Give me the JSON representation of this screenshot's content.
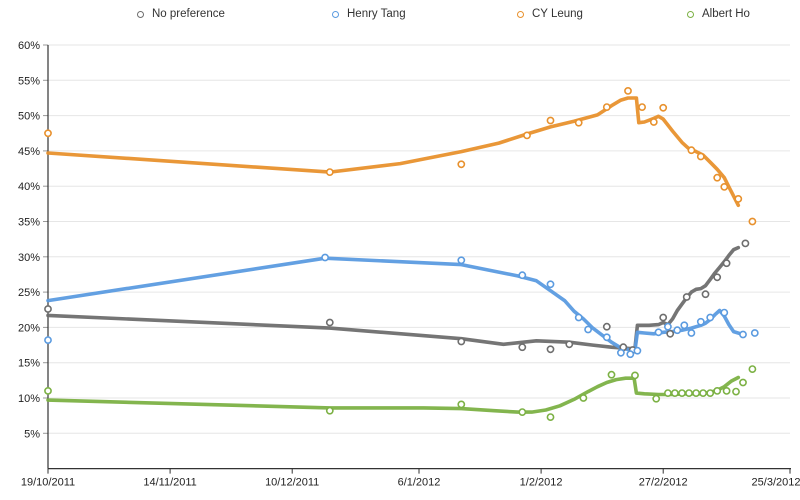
{
  "chart_data": {
    "type": "line",
    "title": "",
    "subtitle": "",
    "legend_position": "top",
    "grid": "horizontal",
    "background_color": "#ffffff",
    "axis_color": "#333333",
    "gridline_color": "#e6e6e6",
    "tick_color": "#999999",
    "label_color": "#222222",
    "x_axis": {
      "start_label": "19/10/2011",
      "end_label": "25/3/2012",
      "total_days": 158,
      "tick_days": [
        0,
        26,
        52,
        79,
        105,
        131,
        158
      ],
      "tick_labels": [
        "19/10/2011",
        "14/11/2011",
        "10/12/2011",
        "6/1/2012",
        "1/2/2012",
        "27/2/2012",
        "25/3/2012"
      ]
    },
    "y_axis": {
      "unit": "%",
      "min": 0,
      "max": 60,
      "step": 5,
      "tick_values": [
        5,
        10,
        15,
        20,
        25,
        30,
        35,
        40,
        45,
        50,
        55,
        60
      ],
      "tick_labels": [
        "5%",
        "10%",
        "15%",
        "20%",
        "25%",
        "30%",
        "35%",
        "40%",
        "45%",
        "50%",
        "55%",
        "60%"
      ]
    },
    "series": [
      {
        "name": "No preference",
        "color": "#6e6e6e",
        "trend": [
          [
            0,
            21.7
          ],
          [
            60,
            19.9
          ],
          [
            88,
            18.4
          ],
          [
            97,
            17.6
          ],
          [
            104,
            18.1
          ],
          [
            111,
            17.9
          ],
          [
            116,
            17.5
          ],
          [
            120,
            17.2
          ],
          [
            124,
            17.0
          ],
          [
            125,
            17.1
          ],
          [
            125.5,
            20.3
          ],
          [
            128,
            20.3
          ],
          [
            130,
            20.4
          ],
          [
            131,
            20.7
          ],
          [
            132,
            20.4
          ],
          [
            133,
            21.2
          ],
          [
            134,
            22.4
          ],
          [
            135,
            23.3
          ],
          [
            136,
            24.2
          ],
          [
            137,
            25.0
          ],
          [
            138,
            25.4
          ],
          [
            139,
            25.5
          ],
          [
            140,
            25.9
          ],
          [
            141,
            26.8
          ],
          [
            142,
            27.7
          ],
          [
            143,
            28.5
          ],
          [
            144,
            29.3
          ],
          [
            145,
            30.2
          ],
          [
            146,
            31.0
          ],
          [
            147,
            31.3
          ]
        ],
        "points": [
          [
            0,
            22.6
          ],
          [
            60,
            20.7
          ],
          [
            88,
            18.0
          ],
          [
            101,
            17.2
          ],
          [
            107,
            16.9
          ],
          [
            111,
            17.6
          ],
          [
            119,
            20.1
          ],
          [
            122.5,
            17.2
          ],
          [
            124.5,
            16.8
          ],
          [
            131,
            21.4
          ],
          [
            132.5,
            19.1
          ],
          [
            136,
            24.3
          ],
          [
            140,
            24.7
          ],
          [
            142.5,
            27.1
          ],
          [
            144.5,
            29.1
          ],
          [
            148.5,
            31.9
          ]
        ]
      },
      {
        "name": "Henry Tang",
        "color": "#5b9be0",
        "trend": [
          [
            0,
            23.8
          ],
          [
            59,
            29.8
          ],
          [
            88,
            28.9
          ],
          [
            100,
            27.3
          ],
          [
            104,
            26.6
          ],
          [
            107,
            25.2
          ],
          [
            110,
            23.8
          ],
          [
            112,
            22.3
          ],
          [
            114,
            21.2
          ],
          [
            116,
            19.9
          ],
          [
            118,
            18.9
          ],
          [
            120,
            17.9
          ],
          [
            122,
            17.1
          ],
          [
            124,
            16.8
          ],
          [
            125,
            16.8
          ],
          [
            125.5,
            19.3
          ],
          [
            127,
            19.2
          ],
          [
            129,
            19.1
          ],
          [
            131,
            19.3
          ],
          [
            133,
            19.4
          ],
          [
            135,
            19.6
          ],
          [
            137,
            19.9
          ],
          [
            139,
            20.3
          ],
          [
            140,
            20.6
          ],
          [
            141,
            21.1
          ],
          [
            142,
            21.8
          ],
          [
            143,
            22.4
          ],
          [
            144,
            21.6
          ],
          [
            145,
            20.4
          ],
          [
            146,
            19.4
          ],
          [
            147.5,
            19.1
          ]
        ],
        "points": [
          [
            0,
            18.2
          ],
          [
            59,
            29.9
          ],
          [
            88,
            29.5
          ],
          [
            101,
            27.4
          ],
          [
            107,
            26.1
          ],
          [
            113,
            21.4
          ],
          [
            115,
            19.7
          ],
          [
            119,
            18.6
          ],
          [
            122,
            16.4
          ],
          [
            124,
            16.2
          ],
          [
            125.5,
            16.7
          ],
          [
            130,
            19.3
          ],
          [
            132,
            20.1
          ],
          [
            134,
            19.6
          ],
          [
            135.5,
            20.3
          ],
          [
            137,
            19.2
          ],
          [
            139,
            20.8
          ],
          [
            141,
            21.4
          ],
          [
            144,
            22.1
          ],
          [
            148,
            19.0
          ],
          [
            150.5,
            19.2
          ]
        ]
      },
      {
        "name": "CY Leung",
        "color": "#e8912d",
        "trend": [
          [
            0,
            44.7
          ],
          [
            60,
            42.0
          ],
          [
            75,
            43.2
          ],
          [
            88,
            44.9
          ],
          [
            96,
            46.1
          ],
          [
            102,
            47.4
          ],
          [
            107,
            48.4
          ],
          [
            112,
            49.2
          ],
          [
            117,
            50.1
          ],
          [
            120,
            51.4
          ],
          [
            122,
            52.2
          ],
          [
            123.5,
            52.5
          ],
          [
            125.3,
            52.5
          ],
          [
            125.8,
            49.0
          ],
          [
            127,
            49.1
          ],
          [
            129,
            49.6
          ],
          [
            130,
            49.9
          ],
          [
            131,
            49.5
          ],
          [
            133,
            47.8
          ],
          [
            135,
            46.2
          ],
          [
            136.5,
            45.3
          ],
          [
            138,
            44.9
          ],
          [
            139.5,
            44.4
          ],
          [
            141,
            43.4
          ],
          [
            142.5,
            42.4
          ],
          [
            144,
            41.2
          ],
          [
            145,
            39.9
          ],
          [
            146,
            38.6
          ],
          [
            147,
            37.3
          ]
        ],
        "points": [
          [
            0,
            47.5
          ],
          [
            60,
            42.0
          ],
          [
            88,
            43.1
          ],
          [
            102,
            47.2
          ],
          [
            107,
            49.3
          ],
          [
            113,
            49.0
          ],
          [
            119,
            51.2
          ],
          [
            123.5,
            53.5
          ],
          [
            126.5,
            51.2
          ],
          [
            129,
            49.1
          ],
          [
            131,
            51.1
          ],
          [
            137,
            45.1
          ],
          [
            139,
            44.2
          ],
          [
            142.5,
            41.2
          ],
          [
            144,
            39.9
          ],
          [
            147,
            38.2
          ],
          [
            150,
            35.0
          ]
        ]
      },
      {
        "name": "Albert Ho",
        "color": "#7cb144",
        "trend": [
          [
            0,
            9.7
          ],
          [
            60,
            8.6
          ],
          [
            80,
            8.6
          ],
          [
            88,
            8.5
          ],
          [
            95,
            8.2
          ],
          [
            100,
            8.0
          ],
          [
            103,
            8.0
          ],
          [
            106,
            8.3
          ],
          [
            109,
            8.9
          ],
          [
            112,
            9.8
          ],
          [
            115,
            10.9
          ],
          [
            117,
            11.6
          ],
          [
            119,
            12.2
          ],
          [
            121,
            12.6
          ],
          [
            123,
            12.8
          ],
          [
            124.8,
            12.8
          ],
          [
            125.3,
            10.7
          ],
          [
            127,
            10.6
          ],
          [
            130,
            10.5
          ],
          [
            133,
            10.5
          ],
          [
            136,
            10.6
          ],
          [
            139,
            10.6
          ],
          [
            141,
            10.8
          ],
          [
            142.5,
            11.1
          ],
          [
            144,
            11.6
          ],
          [
            145.5,
            12.4
          ],
          [
            147,
            12.9
          ]
        ],
        "points": [
          [
            0,
            11.0
          ],
          [
            60,
            8.2
          ],
          [
            88,
            9.1
          ],
          [
            101,
            8.0
          ],
          [
            107,
            7.3
          ],
          [
            114,
            10.0
          ],
          [
            120,
            13.3
          ],
          [
            125,
            13.2
          ],
          [
            129.5,
            9.9
          ],
          [
            132,
            10.7
          ],
          [
            133.5,
            10.7
          ],
          [
            135,
            10.7
          ],
          [
            136.5,
            10.7
          ],
          [
            138,
            10.7
          ],
          [
            139.5,
            10.7
          ],
          [
            141,
            10.7
          ],
          [
            142.5,
            11.0
          ],
          [
            144.5,
            11.0
          ],
          [
            146.5,
            10.9
          ],
          [
            148,
            12.2
          ],
          [
            150,
            14.1
          ]
        ]
      }
    ]
  }
}
